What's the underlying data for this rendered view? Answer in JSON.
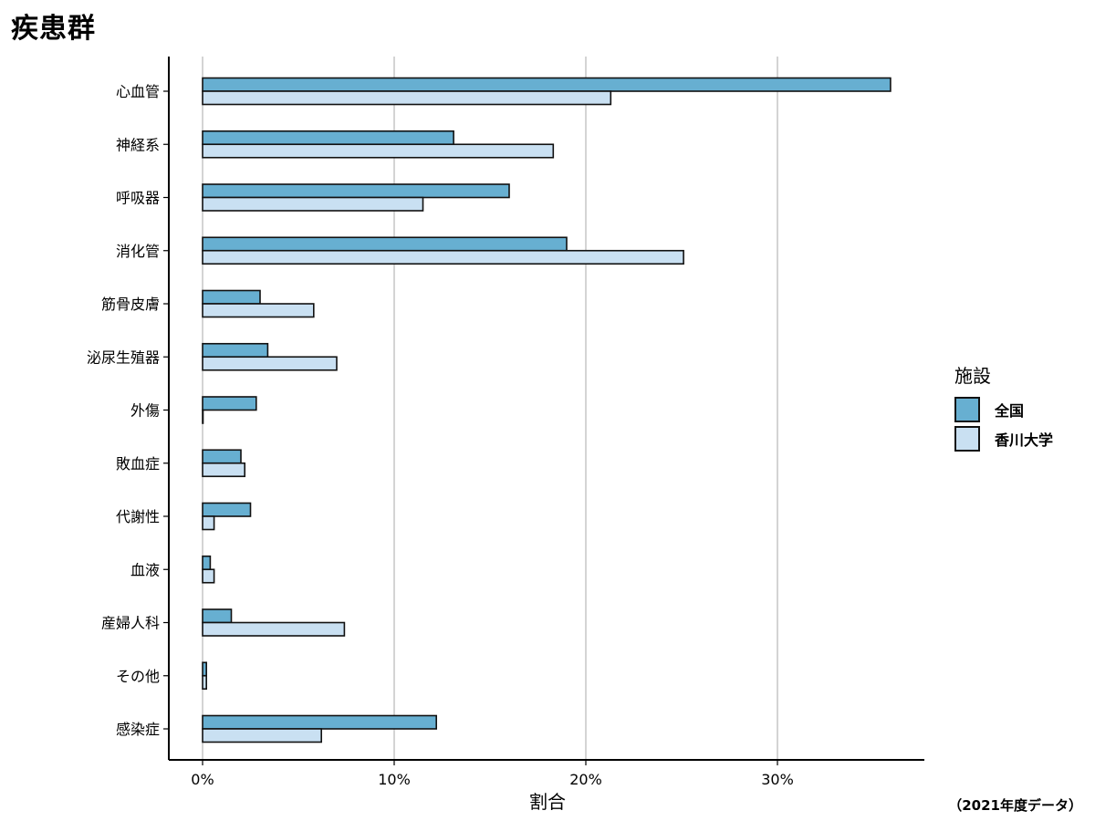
{
  "page": {
    "title": "疾患群",
    "footnote": "（2021年度データ）"
  },
  "legend": {
    "title": "施設",
    "items": [
      {
        "label": "全国",
        "color": "#67afd1"
      },
      {
        "label": "香川大学",
        "color": "#c9e0f2"
      }
    ]
  },
  "chart_data": {
    "type": "bar",
    "orientation": "horizontal",
    "title": "",
    "xlabel": "割合",
    "ylabel": "",
    "xlim": [
      0,
      0.38
    ],
    "x_ticks": [
      0,
      0.1,
      0.2,
      0.3
    ],
    "x_tick_labels": [
      "0%",
      "10%",
      "20%",
      "30%"
    ],
    "grid": "vertical major gridlines",
    "legend_position": "right",
    "categories": [
      "心血管",
      "神経系",
      "呼吸器",
      "消化管",
      "筋骨皮膚",
      "泌尿生殖器",
      "外傷",
      "敗血症",
      "代謝性",
      "血液",
      "産婦人科",
      "その他",
      "感染症"
    ],
    "series": [
      {
        "name": "全国",
        "color": "#67afd1",
        "values": [
          0.359,
          0.131,
          0.16,
          0.19,
          0.03,
          0.034,
          0.028,
          0.02,
          0.025,
          0.004,
          0.015,
          0.002,
          0.122
        ]
      },
      {
        "name": "香川大学",
        "color": "#c9e0f2",
        "values": [
          0.213,
          0.183,
          0.115,
          0.251,
          0.058,
          0.07,
          0.0,
          0.022,
          0.006,
          0.006,
          0.074,
          0.002,
          0.062
        ]
      }
    ]
  }
}
